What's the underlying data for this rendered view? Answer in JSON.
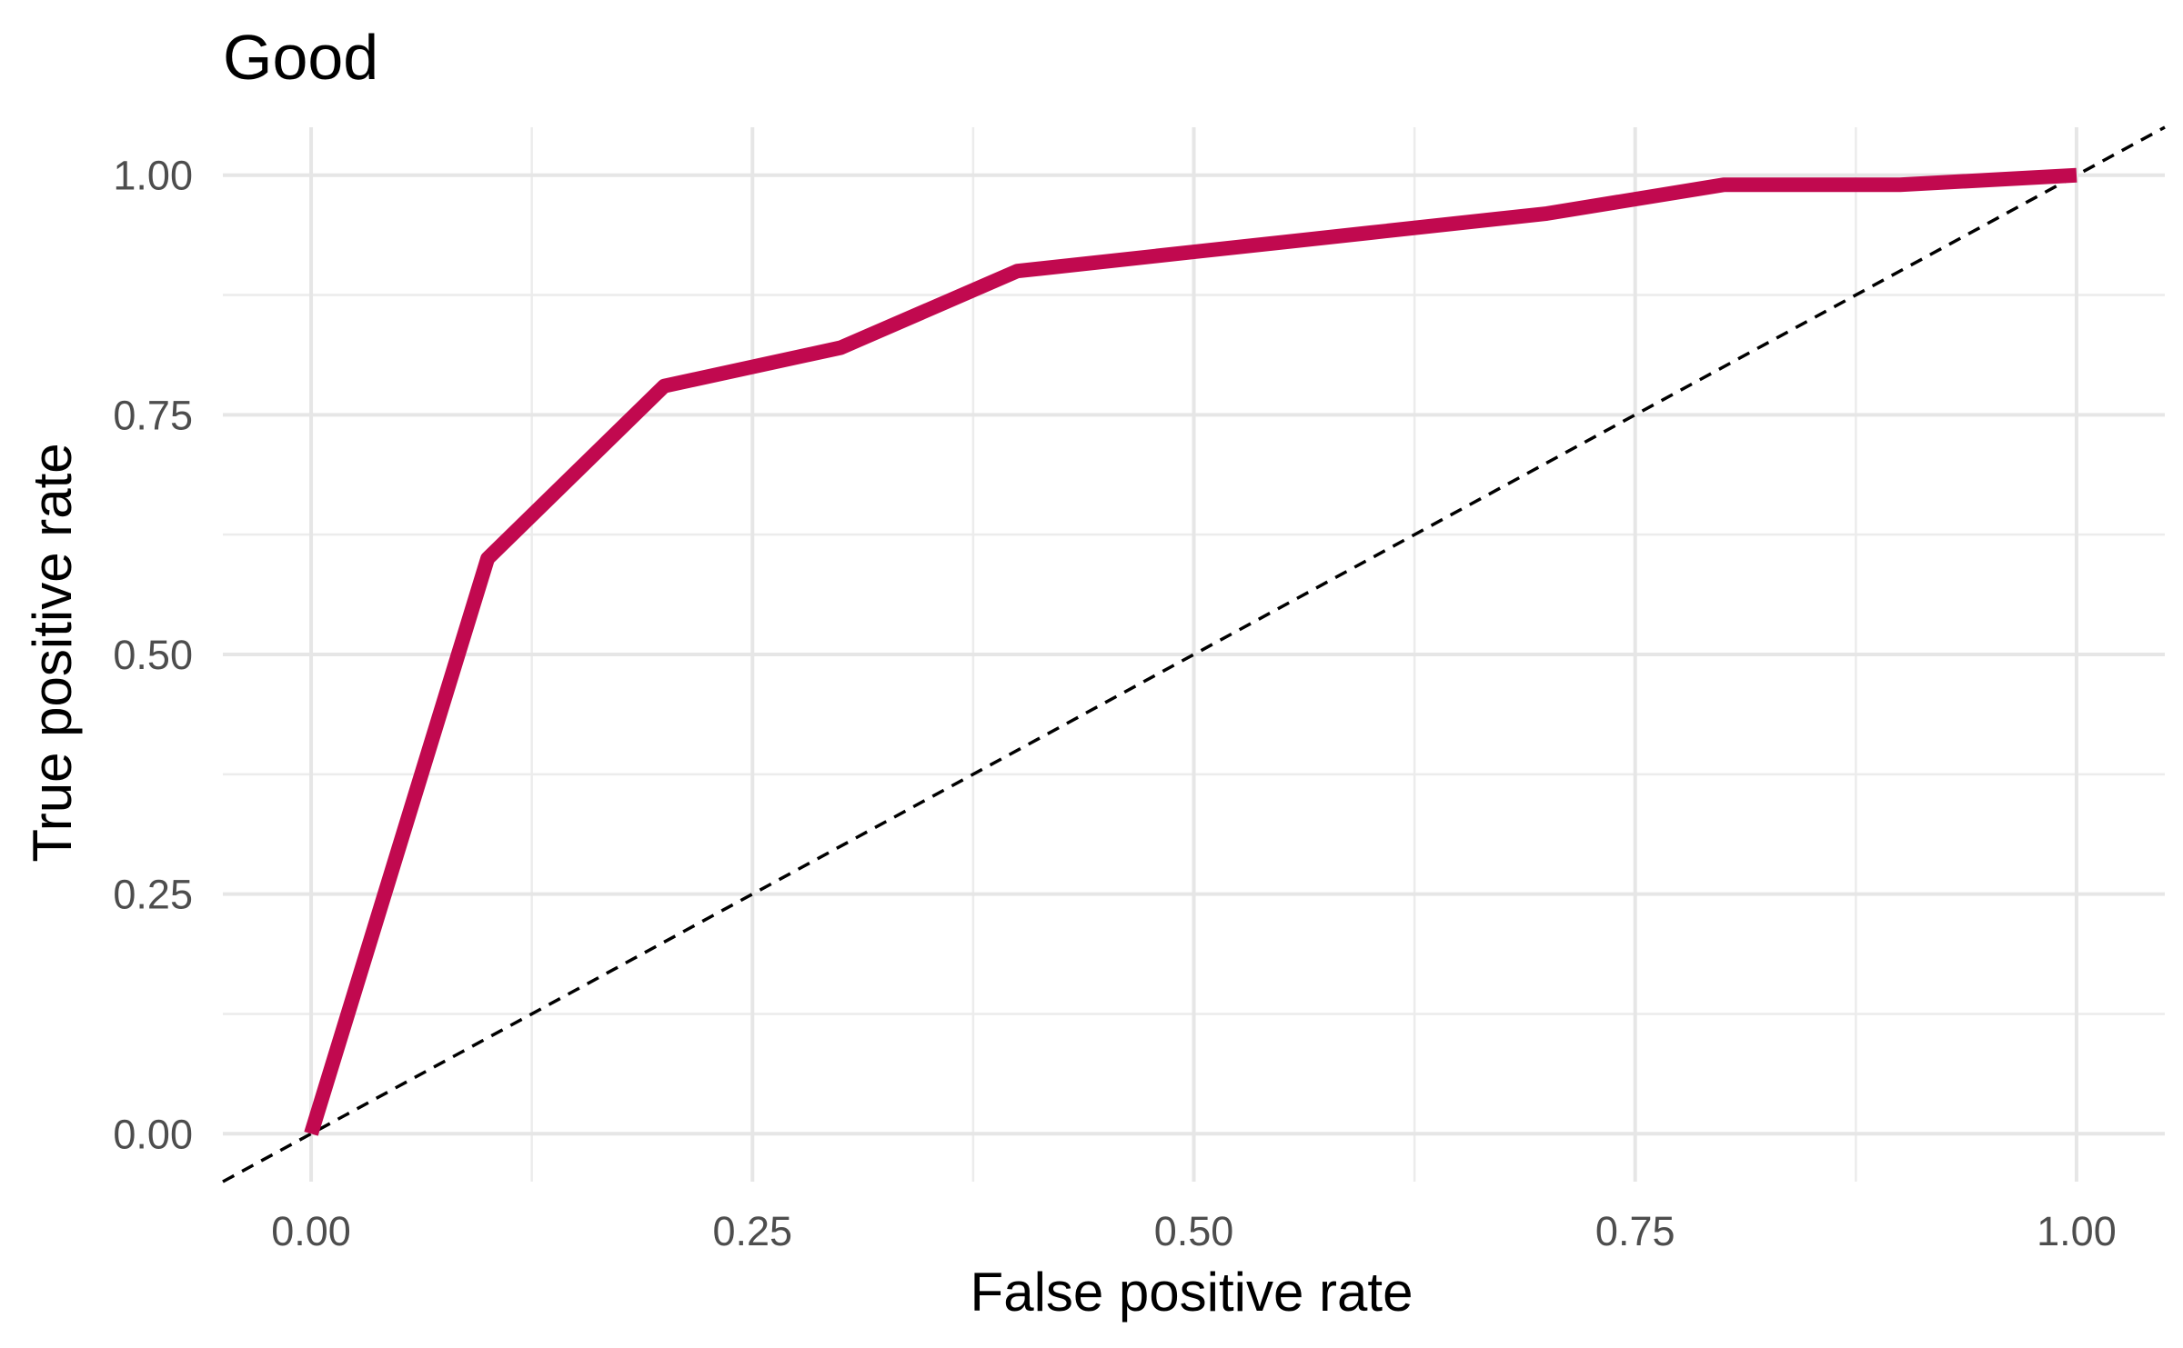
{
  "chart_data": {
    "type": "line",
    "title": "Good",
    "xlabel": "False positive rate",
    "ylabel": "True positive rate",
    "xlim": [
      -0.05,
      1.05
    ],
    "ylim": [
      -0.05,
      1.05
    ],
    "x_ticks": [
      0,
      0.25,
      0.5,
      0.75,
      1
    ],
    "y_ticks": [
      0,
      0.25,
      0.5,
      0.75,
      1
    ],
    "x_tick_labels": [
      "0.00",
      "0.25",
      "0.50",
      "0.75",
      "1.00"
    ],
    "y_tick_labels": [
      "0.00",
      "0.25",
      "0.50",
      "0.75",
      "1.00"
    ],
    "grid": true,
    "series": [
      {
        "color": "#c1094f",
        "x": [
          0,
          0.1,
          0.2,
          0.3,
          0.4,
          0.5,
          0.6,
          0.7,
          0.8,
          0.9,
          1.0
        ],
        "y": [
          0,
          0.6,
          0.78,
          0.82,
          0.9,
          0.92,
          0.94,
          0.96,
          0.99,
          0.99,
          1.0
        ]
      }
    ],
    "reference_line": {
      "style": "dashed",
      "color": "#000000",
      "slope": 1,
      "intercept": 0
    }
  }
}
